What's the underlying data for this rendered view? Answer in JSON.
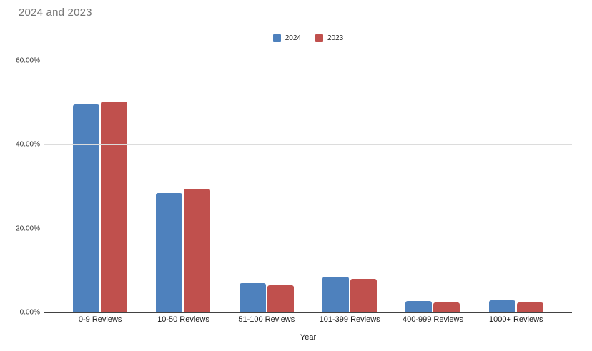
{
  "chart_data": {
    "type": "bar",
    "title": "2024 and 2023",
    "xlabel": "Year",
    "ylabel": "",
    "categories": [
      "0-9 Reviews",
      "10-50 Reviews",
      "51-100 Reviews",
      "101-399 Reviews",
      "400-999 Reviews",
      "1000+ Reviews"
    ],
    "series": [
      {
        "name": "2024",
        "color": "#4e81bd",
        "values": [
          49.6,
          28.5,
          7.0,
          8.6,
          2.7,
          2.9
        ]
      },
      {
        "name": "2023",
        "color": "#c0504d",
        "values": [
          50.3,
          29.5,
          6.5,
          8.0,
          2.4,
          2.4
        ]
      }
    ],
    "ylim": [
      0,
      60
    ],
    "yticks": [
      0,
      20,
      40,
      60
    ],
    "ytick_labels": [
      "0.00%",
      "20.00%",
      "40.00%",
      "60.00%"
    ],
    "grid": true,
    "legend_position": "top-center",
    "colors": {
      "title_text": "#757575",
      "axis_line": "#424242",
      "gridline": "#dcdcdc",
      "tick_text": "#333333",
      "category_text": "#1a1a1a"
    }
  }
}
